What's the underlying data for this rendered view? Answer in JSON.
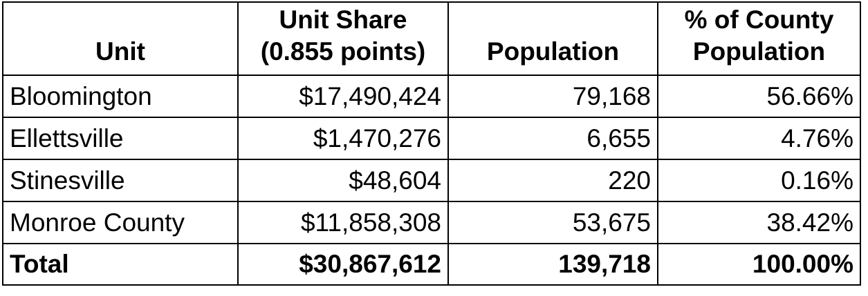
{
  "table": {
    "headers": [
      {
        "lines": [
          "Unit"
        ]
      },
      {
        "lines": [
          "Unit Share",
          "(0.855 points)"
        ]
      },
      {
        "lines": [
          "Population"
        ]
      },
      {
        "lines": [
          "% of County",
          "Population"
        ]
      }
    ],
    "rows": [
      {
        "unit": "Bloomington",
        "share": "$17,490,424",
        "population": "79,168",
        "percent": "56.66%"
      },
      {
        "unit": "Ellettsville",
        "share": "$1,470,276",
        "population": "6,655",
        "percent": "4.76%"
      },
      {
        "unit": "Stinesville",
        "share": "$48,604",
        "population": "220",
        "percent": "0.16%"
      },
      {
        "unit": "Monroe County",
        "share": "$11,858,308",
        "population": "53,675",
        "percent": "38.42%"
      }
    ],
    "total": {
      "unit": "Total",
      "share": "$30,867,612",
      "population": "139,718",
      "percent": "100.00%"
    }
  }
}
